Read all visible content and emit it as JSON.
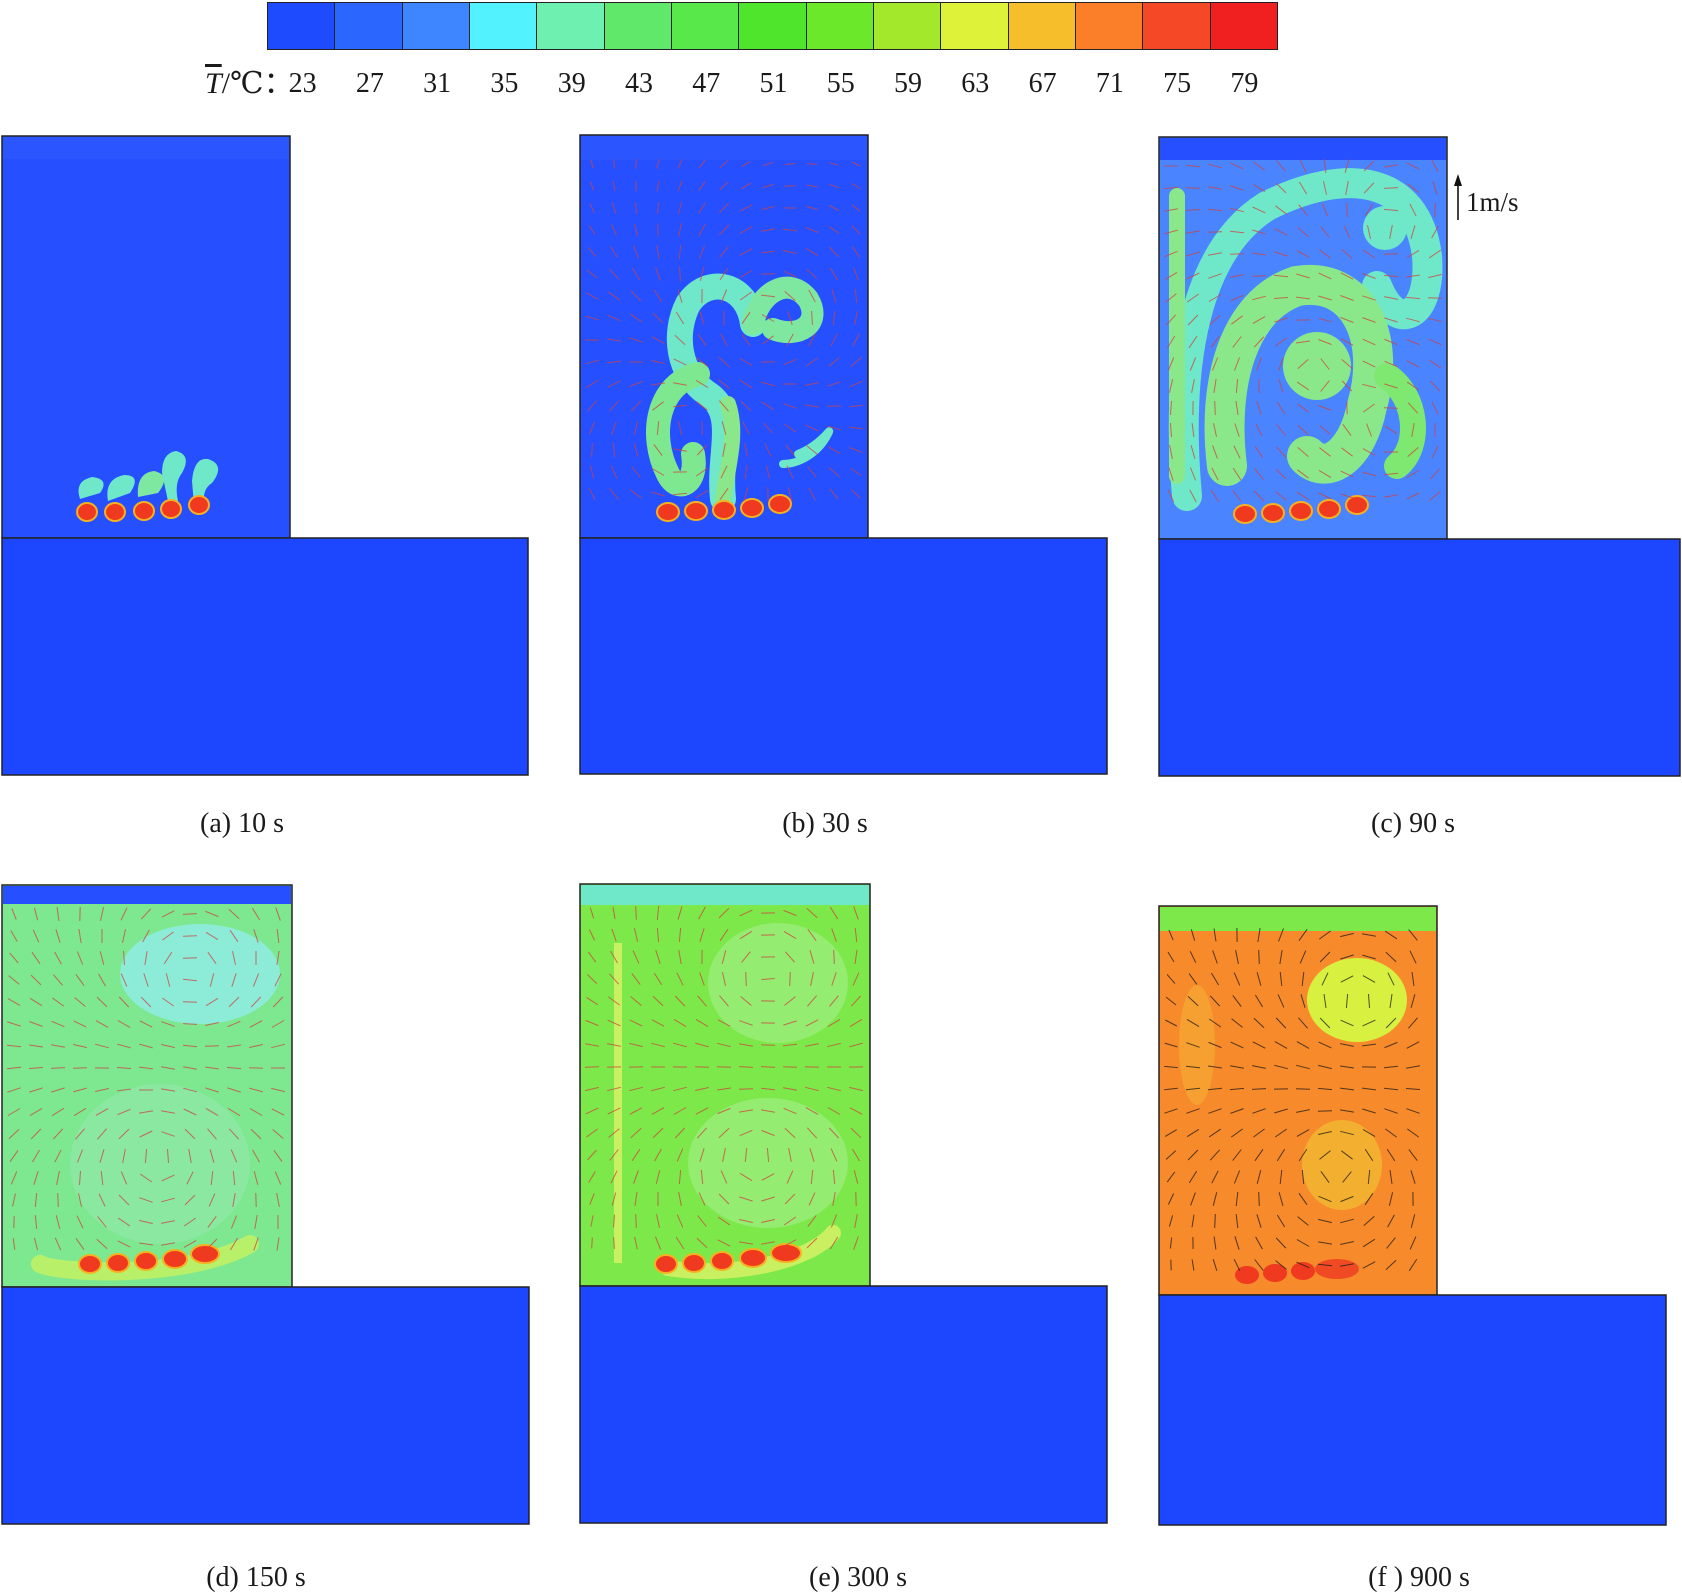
{
  "colorbar": {
    "symbol": "T",
    "unit_suffix": "/℃：",
    "colors": [
      "#1f4bff",
      "#2b66ff",
      "#3d86ff",
      "#52f2ff",
      "#6df0b0",
      "#5fe86a",
      "#58e84a",
      "#4fe52d",
      "#6be82a",
      "#a3e82a",
      "#dff23a",
      "#f5be2a",
      "#fb7e28",
      "#f54826",
      "#f02020"
    ],
    "tick_labels": [
      "23",
      "27",
      "31",
      "35",
      "39",
      "43",
      "47",
      "51",
      "55",
      "59",
      "63",
      "67",
      "71",
      "75",
      "79"
    ]
  },
  "velocity_scale": {
    "label": "1m/s"
  },
  "panels": [
    {
      "id": "a",
      "caption": "(a) 10 s",
      "fluid_color": "#2650ff",
      "vector_color": "#d04040"
    },
    {
      "id": "b",
      "caption": "(b) 30 s",
      "fluid_color": "#2650ff",
      "vector_color": "#d04040"
    },
    {
      "id": "c",
      "caption": "(c) 90 s",
      "fluid_color": "#4a84ff",
      "vector_color": "#d04040"
    },
    {
      "id": "d",
      "caption": "(d) 150 s",
      "fluid_color": "#7de890",
      "vector_color": "#d04040"
    },
    {
      "id": "e",
      "caption": "(e) 300 s",
      "fluid_color": "#7de84a",
      "vector_color": "#d04040"
    },
    {
      "id": "f",
      "caption": "(f ) 900 s",
      "fluid_color": "#f78a2a",
      "vector_color": "#1a1a1a"
    }
  ]
}
